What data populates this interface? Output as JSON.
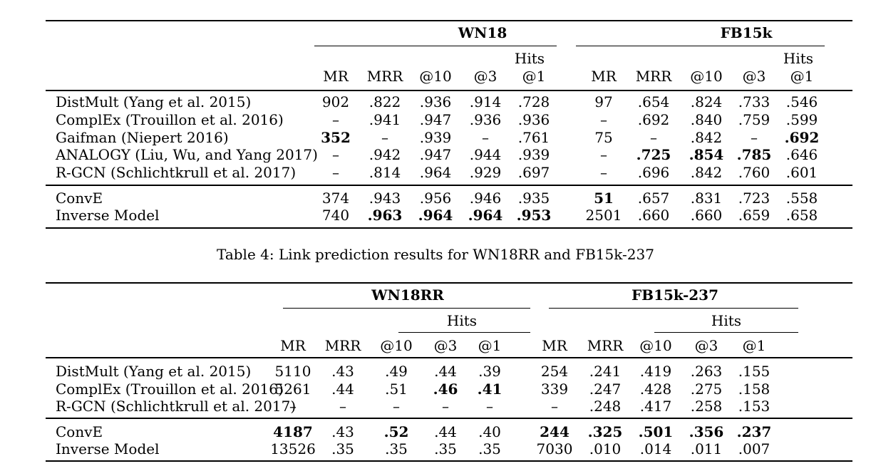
{
  "table3": {
    "groups": [
      "WN18",
      "FB15k"
    ],
    "hits_label": "Hits",
    "columns": [
      "MR",
      "MRR",
      "@10",
      "@3",
      "@1"
    ],
    "sections": [
      [
        {
          "name": "DistMult (Yang et al. 2015)",
          "left": [
            "902",
            ".822",
            ".936",
            ".914",
            ".728"
          ],
          "right": [
            "97",
            ".654",
            ".824",
            ".733",
            ".546"
          ]
        },
        {
          "name": "ComplEx (Trouillon et al. 2016)",
          "left": [
            "–",
            ".941",
            ".947",
            ".936",
            ".936"
          ],
          "right": [
            "–",
            ".692",
            ".840",
            ".759",
            ".599"
          ]
        },
        {
          "name": "Gaifman (Niepert 2016)",
          "left": [
            "352",
            "–",
            ".939",
            "–",
            ".761"
          ],
          "right": [
            "75",
            "–",
            ".842",
            "–",
            ".692"
          ]
        },
        {
          "name": "ANALOGY (Liu, Wu, and Yang 2017)",
          "left": [
            "–",
            ".942",
            ".947",
            ".944",
            ".939"
          ],
          "right": [
            "–",
            ".725",
            ".854",
            ".785",
            ".646"
          ]
        },
        {
          "name": "R-GCN (Schlichtkrull et al. 2017)",
          "left": [
            "–",
            ".814",
            ".964",
            ".929",
            ".697"
          ],
          "right": [
            "–",
            ".696",
            ".842",
            ".760",
            ".601"
          ]
        }
      ],
      [
        {
          "name": "ConvE",
          "left": [
            "374",
            ".943",
            ".956",
            ".946",
            ".935"
          ],
          "right": [
            "51",
            ".657",
            ".831",
            ".723",
            ".558"
          ]
        },
        {
          "name": "Inverse Model",
          "left": [
            "740",
            ".963",
            ".964",
            ".964",
            ".953"
          ],
          "right": [
            "2501",
            ".660",
            ".660",
            ".659",
            ".658"
          ]
        }
      ]
    ]
  },
  "caption4": "Table 4: Link prediction results for WN18RR and FB15k-237",
  "table4": {
    "groups": [
      "WN18RR",
      "FB15k-237"
    ],
    "hits_label": "Hits",
    "columns": [
      "MR",
      "MRR",
      "@10",
      "@3",
      "@1"
    ],
    "sections": [
      [
        {
          "name": "DistMult (Yang et al. 2015)",
          "left": [
            "5110",
            ".43",
            ".49",
            ".44",
            ".39"
          ],
          "right": [
            "254",
            ".241",
            ".419",
            ".263",
            ".155"
          ]
        },
        {
          "name": "ComplEx (Trouillon et al. 2016)",
          "left": [
            "5261",
            ".44",
            ".51",
            ".46",
            ".41"
          ],
          "right": [
            "339",
            ".247",
            ".428",
            ".275",
            ".158"
          ]
        },
        {
          "name": "R-GCN (Schlichtkrull et al. 2017)",
          "left": [
            "–",
            "–",
            "–",
            "–",
            "–"
          ],
          "right": [
            "–",
            ".248",
            ".417",
            ".258",
            ".153"
          ]
        }
      ],
      [
        {
          "name": "ConvE",
          "left": [
            "4187",
            ".43",
            ".52",
            ".44",
            ".40"
          ],
          "right": [
            "244",
            ".325",
            ".501",
            ".356",
            ".237"
          ]
        },
        {
          "name": "Inverse Model",
          "left": [
            "13526",
            ".35",
            ".35",
            ".35",
            ".35"
          ],
          "right": [
            "7030",
            ".010",
            ".014",
            ".011",
            ".007"
          ]
        }
      ]
    ]
  }
}
